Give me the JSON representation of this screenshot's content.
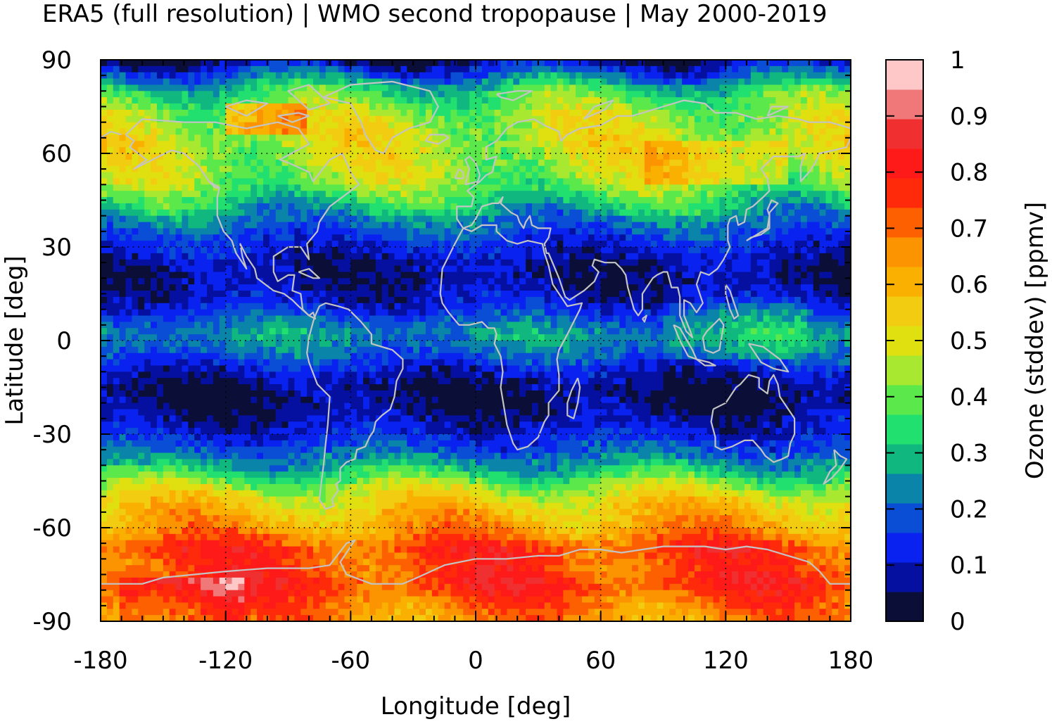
{
  "title": "ERA5 (full resolution) | WMO second tropopause | May 2000-2019",
  "chart_data": {
    "type": "heatmap",
    "title": "ERA5 (full resolution) | WMO second tropopause | May 2000-2019",
    "xlabel": "Longitude [deg]",
    "ylabel": "Latitude [deg]",
    "colorbar_label": "Ozone (stddev) [ppmv]",
    "xlim": [
      -180,
      180
    ],
    "ylim": [
      -90,
      90
    ],
    "xticks": [
      "-180",
      "-120",
      "-60",
      "0",
      "60",
      "120",
      "180"
    ],
    "yticks": [
      "90",
      "60",
      "30",
      "0",
      "-30",
      "-60",
      "-90"
    ],
    "colorbar_range": [
      0,
      1
    ],
    "colorbar_ticks": [
      "0",
      "0.1",
      "0.2",
      "0.3",
      "0.4",
      "0.5",
      "0.6",
      "0.7",
      "0.8",
      "0.9",
      "1"
    ],
    "colorbar_colors": [
      "#0b0f38",
      "#0610a0",
      "#0a22f0",
      "#0a4ed6",
      "#0a84a8",
      "#10b880",
      "#22e070",
      "#5ae84a",
      "#a8e830",
      "#e0e010",
      "#f2cc10",
      "#f9b000",
      "#fb9400",
      "#fd6000",
      "#ff2a0a",
      "#ff1a1a",
      "#f03030",
      "#f07878",
      "#ffc8c8"
    ],
    "grid": true,
    "overlay": "coastlines",
    "zonal_profile": [
      {
        "lat": 90,
        "value": 0.05
      },
      {
        "lat": 85,
        "value": 0.2
      },
      {
        "lat": 80,
        "value": 0.35
      },
      {
        "lat": 72,
        "value": 0.45
      },
      {
        "lat": 65,
        "value": 0.48
      },
      {
        "lat": 58,
        "value": 0.47
      },
      {
        "lat": 50,
        "value": 0.42
      },
      {
        "lat": 44,
        "value": 0.32
      },
      {
        "lat": 38,
        "value": 0.22
      },
      {
        "lat": 32,
        "value": 0.14
      },
      {
        "lat": 25,
        "value": 0.08
      },
      {
        "lat": 20,
        "value": 0.06
      },
      {
        "lat": 12,
        "value": 0.11
      },
      {
        "lat": 6,
        "value": 0.2
      },
      {
        "lat": 2,
        "value": 0.26
      },
      {
        "lat": -4,
        "value": 0.2
      },
      {
        "lat": -10,
        "value": 0.1
      },
      {
        "lat": -15,
        "value": 0.05
      },
      {
        "lat": -20,
        "value": 0.04
      },
      {
        "lat": -25,
        "value": 0.08
      },
      {
        "lat": -30,
        "value": 0.12
      },
      {
        "lat": -36,
        "value": 0.2
      },
      {
        "lat": -42,
        "value": 0.32
      },
      {
        "lat": -47,
        "value": 0.45
      },
      {
        "lat": -52,
        "value": 0.55
      },
      {
        "lat": -57,
        "value": 0.6
      },
      {
        "lat": -62,
        "value": 0.66
      },
      {
        "lat": -67,
        "value": 0.76
      },
      {
        "lat": -72,
        "value": 0.73
      },
      {
        "lat": -78,
        "value": 0.78
      },
      {
        "lat": -84,
        "value": 0.7
      },
      {
        "lat": -90,
        "value": 0.65
      }
    ]
  }
}
